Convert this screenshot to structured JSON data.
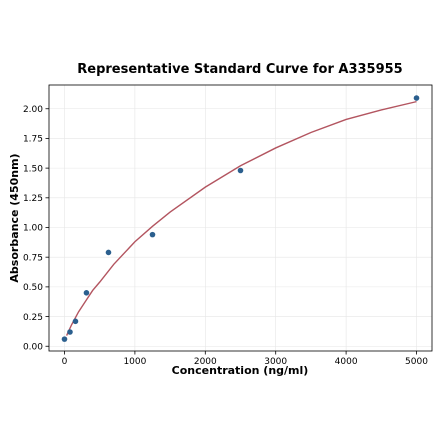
{
  "chart_data": {
    "type": "scatter",
    "title": "Representative Standard Curve for A335955",
    "xlabel": "Concentration (ng/ml)",
    "ylabel": "Absorbance (450nm)",
    "xlim": [
      -220,
      5220
    ],
    "ylim": [
      -0.04,
      2.2
    ],
    "xticks": [
      0,
      1000,
      2000,
      3000,
      4000,
      5000
    ],
    "yticks": [
      0.0,
      0.25,
      0.5,
      0.75,
      1.0,
      1.25,
      1.5,
      1.75,
      2.0
    ],
    "xtick_labels": [
      "0",
      "1000",
      "2000",
      "3000",
      "4000",
      "5000"
    ],
    "ytick_labels": [
      "0.00",
      "0.25",
      "0.50",
      "0.75",
      "1.00",
      "1.25",
      "1.50",
      "1.75",
      "2.00"
    ],
    "grid": true,
    "series": [
      {
        "kind": "points",
        "color": "#2b5f8e",
        "x": [
          0,
          78,
          156,
          312,
          625,
          1250,
          2500,
          5000
        ],
        "y": [
          0.06,
          0.12,
          0.21,
          0.45,
          0.79,
          0.94,
          1.48,
          2.09
        ]
      },
      {
        "kind": "fit-curve",
        "color": "#b35560",
        "x": [
          30,
          100,
          200,
          300,
          400,
          500,
          700,
          1000,
          1250,
          1500,
          2000,
          2500,
          3000,
          3500,
          4000,
          4500,
          5000
        ],
        "y": [
          0.09,
          0.18,
          0.29,
          0.38,
          0.47,
          0.54,
          0.69,
          0.88,
          1.01,
          1.13,
          1.34,
          1.52,
          1.67,
          1.8,
          1.91,
          1.99,
          2.06
        ]
      }
    ]
  }
}
